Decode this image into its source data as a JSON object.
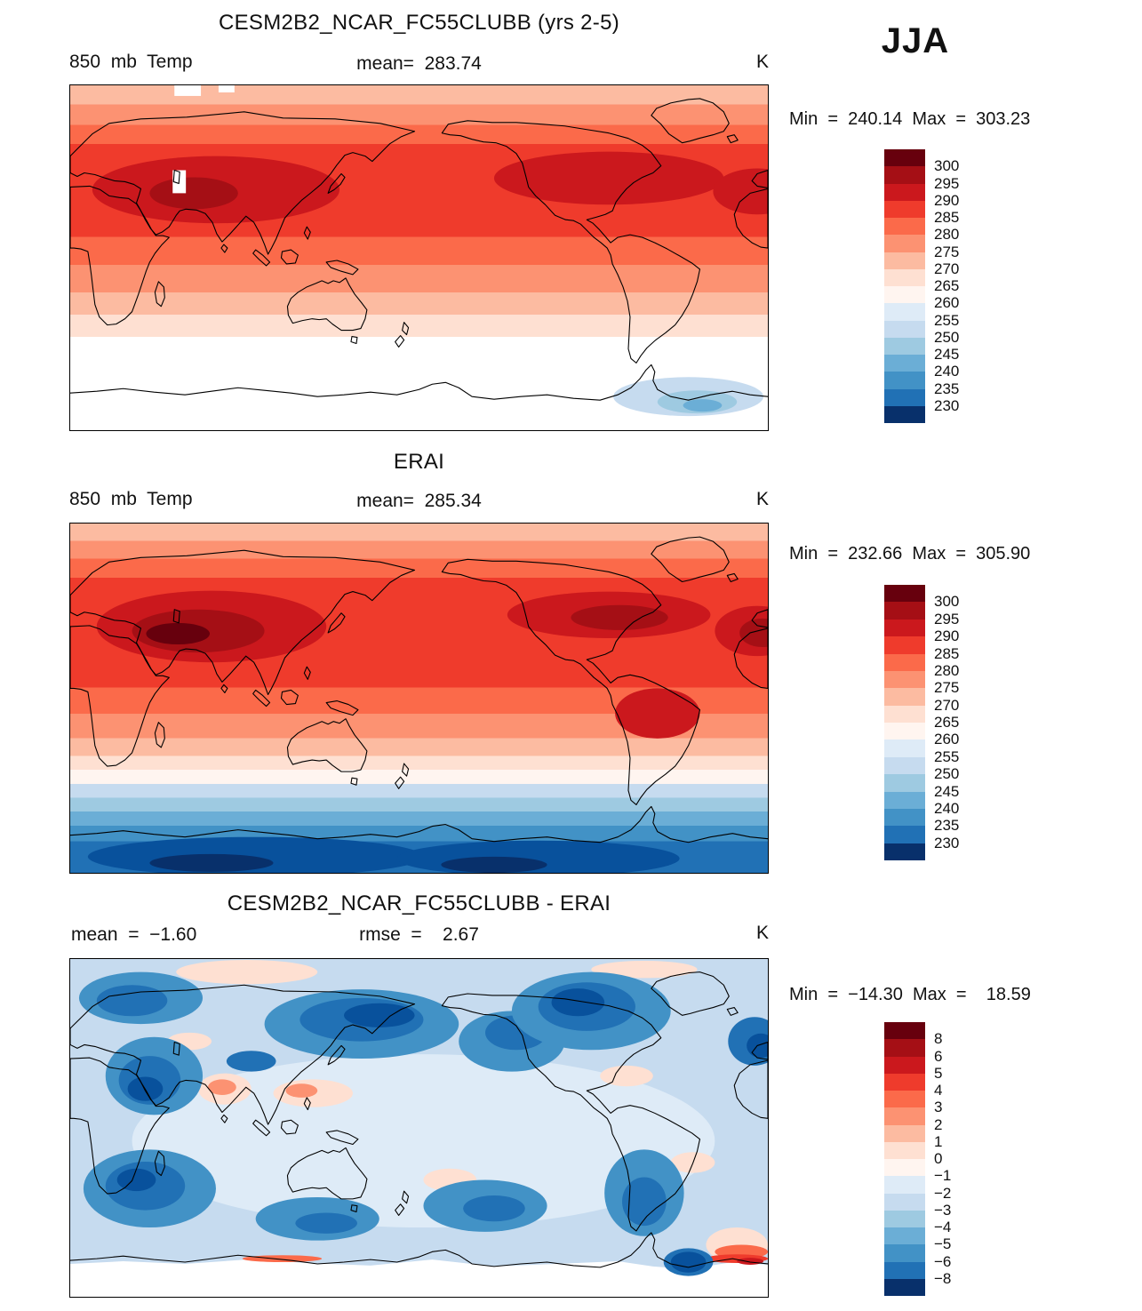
{
  "season_label": "JJA",
  "colors": {
    "temp_scale": [
      "#67000d",
      "#a50f15",
      "#cb181d",
      "#ef3b2c",
      "#fb6a4a",
      "#fc9272",
      "#fcbba1",
      "#fee0d2",
      "#fff5f0",
      "#deebf7",
      "#c6dbef",
      "#9ecae1",
      "#6baed6",
      "#4292c6",
      "#2171b5",
      "#08306b"
    ],
    "land_outline": "#000000",
    "background": "#ffffff"
  },
  "panels": [
    {
      "title": "CESM2B2_NCAR_FC55CLUBB (yrs 2-5)",
      "field_label": "850  mb  Temp",
      "mean_label": "mean=  283.74",
      "units": "K",
      "minmax_label": "Min  =  240.14  Max  =  303.23",
      "colorbar_ticks": [
        "300",
        "295",
        "290",
        "285",
        "280",
        "275",
        "270",
        "265",
        "260",
        "255",
        "250",
        "245",
        "240",
        "235",
        "230"
      ]
    },
    {
      "title": "ERAI",
      "field_label": "850  mb  Temp",
      "mean_label": "mean=  285.34",
      "units": "K",
      "minmax_label": "Min  =  232.66  Max  =  305.90",
      "colorbar_ticks": [
        "300",
        "295",
        "290",
        "285",
        "280",
        "275",
        "270",
        "265",
        "260",
        "255",
        "250",
        "245",
        "240",
        "235",
        "230"
      ]
    },
    {
      "title": "CESM2B2_NCAR_FC55CLUBB - ERAI",
      "mean_label": "mean  =  −1.60",
      "rmse_label": "rmse  =    2.67",
      "units": "K",
      "minmax_label": "Min  =  −14.30  Max  =    18.59",
      "colorbar_ticks": [
        "8",
        "6",
        "5",
        "4",
        "3",
        "2",
        "1",
        "0",
        "−1",
        "−2",
        "−3",
        "−4",
        "−5",
        "−6",
        "−8"
      ]
    }
  ],
  "chart_data": [
    {
      "type": "heatmap",
      "title": "CESM2B2_NCAR_FC55CLUBB (yrs 2-5)",
      "variable": "850 mb Temp",
      "season": "JJA",
      "units": "K",
      "mean": 283.74,
      "min": 240.14,
      "max": 303.23,
      "colorbar_levels": [
        300,
        295,
        290,
        285,
        280,
        275,
        270,
        265,
        260,
        255,
        250,
        245,
        240,
        235,
        230
      ],
      "projection": "global cylindrical lat-lon, Pacific-centered",
      "description": "Model 850 mb temperature climatology: deep reds over NH subtropics and Middle East, lightening southward to white and pale blue near Antarctica"
    },
    {
      "type": "heatmap",
      "title": "ERAI",
      "variable": "850 mb Temp",
      "season": "JJA",
      "units": "K",
      "mean": 285.34,
      "min": 232.66,
      "max": 305.9,
      "colorbar_levels": [
        300,
        295,
        290,
        285,
        280,
        275,
        270,
        265,
        260,
        255,
        250,
        245,
        240,
        235,
        230
      ],
      "projection": "global cylindrical lat-lon, Pacific-centered",
      "description": "ERA-Interim 850 mb temperature: darkest reds over North Africa/Arabia and NH continents, strong blue band over Southern Ocean and Antarctica"
    },
    {
      "type": "heatmap",
      "title": "CESM2B2_NCAR_FC55CLUBB - ERAI",
      "variable": "850 mb Temp difference",
      "season": "JJA",
      "units": "K",
      "mean": -1.6,
      "rmse": 2.67,
      "min": -14.3,
      "max": 18.59,
      "colorbar_levels": [
        8,
        6,
        5,
        4,
        3,
        2,
        1,
        0,
        -1,
        -2,
        -3,
        -4,
        -5,
        -6,
        -8
      ],
      "projection": "global cylindrical lat-lon, Pacific-centered",
      "description": "Model minus reanalysis bias: mostly light-to-dark blue cold bias with strongest blues over N Pacific, N Atlantic, Arabia and SH continents; scattered warm patches and red streaks along the Antarctic coast"
    }
  ]
}
